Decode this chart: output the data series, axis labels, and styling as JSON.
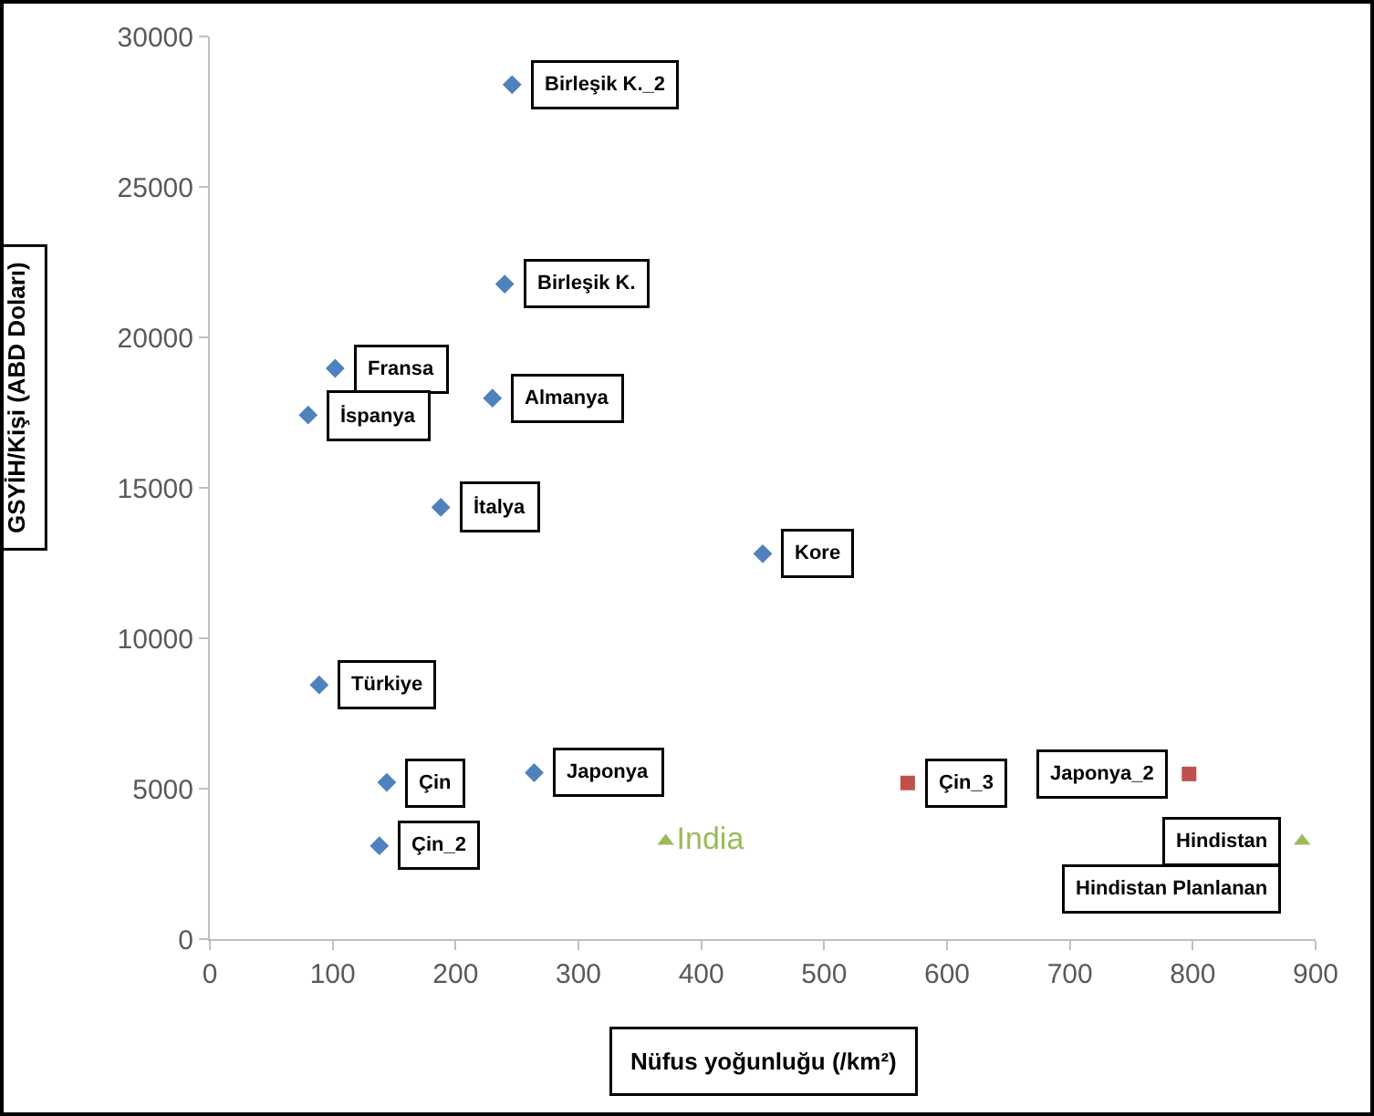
{
  "chart_data": {
    "type": "scatter",
    "xlabel": "Nüfus yoğunluğu (/km²)",
    "ylabel": "GSYİH/Kişi (ABD Doları)",
    "xlim": [
      0,
      900
    ],
    "xticks": [
      0,
      100,
      200,
      300,
      400,
      500,
      600,
      700,
      800,
      900
    ],
    "ylim": [
      0,
      30000
    ],
    "yticks": [
      0,
      5000,
      10000,
      15000,
      20000,
      25000,
      30000
    ],
    "series": [
      {
        "color": "#4f81bd",
        "marker": "diamond",
        "x": [
          246,
          240,
          102,
          230,
          80,
          188,
          450,
          89,
          144,
          264,
          138
        ],
        "values": [
          28400,
          21770,
          18970,
          17980,
          17420,
          14350,
          12810,
          8450,
          5210,
          5530,
          3100
        ]
      },
      {
        "color": "#c0504d",
        "marker": "square",
        "x": [
          568,
          797
        ],
        "values": [
          5190,
          5490
        ]
      },
      {
        "color": "#9bbb59",
        "marker": "triangle",
        "x": [
          371,
          889
        ],
        "values": [
          3260,
          3260
        ],
        "value_labels": [
          "India",
          null
        ]
      }
    ],
    "annotations": [
      {
        "text": "Birleşik K._2",
        "x": 246,
        "y": 28400
      },
      {
        "text": "Birleşik K.",
        "x": 240,
        "y": 21770
      },
      {
        "text": "Fransa",
        "x": 102,
        "y": 18970
      },
      {
        "text": "Almanya",
        "x": 230,
        "y": 17980
      },
      {
        "text": "İspanya",
        "x": 80,
        "y": 17420
      },
      {
        "text": "İtalya",
        "x": 188,
        "y": 14350
      },
      {
        "text": "Kore",
        "x": 450,
        "y": 12810
      },
      {
        "text": "Türkiye",
        "x": 89,
        "y": 8450
      },
      {
        "text": "Çin",
        "x": 144,
        "y": 5210
      },
      {
        "text": "Japonya",
        "x": 264,
        "y": 5530
      },
      {
        "text": "Çin_2",
        "x": 138,
        "y": 3100
      },
      {
        "text": "Çin_3",
        "x": 568,
        "y": 5190
      },
      {
        "text": "Japonya_2",
        "x": 797,
        "y": 5490
      },
      {
        "text": "Hindistan",
        "x": 889,
        "y": 3260
      },
      {
        "text": "Hindistan Planlanan",
        "x": 889,
        "y": 3260
      }
    ]
  }
}
